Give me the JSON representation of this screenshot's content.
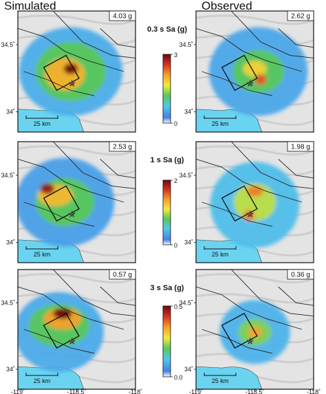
{
  "chart_data": {
    "type": "heatmap",
    "columns": [
      "Simulated",
      "Observed"
    ],
    "x_ticks": [
      "-119˚",
      "-118.5˚",
      "-118˚"
    ],
    "y_ticks": [
      "34.5˚",
      "34˚"
    ],
    "xlim": [
      -119,
      -118
    ],
    "ylim": [
      33.85,
      34.75
    ],
    "scale_bar": "25 km",
    "epicenter": {
      "lon": -118.54,
      "lat": 34.21
    },
    "rows": [
      {
        "label": "0.3 s Sa (g)",
        "colorbar_min": "0",
        "colorbar_max": "3",
        "vmax": 3,
        "simulated_peak": "4.03 g",
        "observed_peak": "2.62 g",
        "sim_blobs": [
          {
            "lon": -118.55,
            "lat": 34.32,
            "v": 3.0,
            "rx": 0.06,
            "ry": 0.04
          },
          {
            "lon": -118.6,
            "lat": 34.28,
            "v": 2.0,
            "rx": 0.17,
            "ry": 0.12
          },
          {
            "lon": -118.55,
            "lat": 34.3,
            "v": 1.2,
            "rx": 0.3,
            "ry": 0.22
          },
          {
            "lon": -118.55,
            "lat": 34.3,
            "v": 0.55,
            "rx": 0.44,
            "ry": 0.33
          }
        ],
        "obs_blobs": [
          {
            "lon": -118.45,
            "lat": 34.24,
            "v": 2.4,
            "rx": 0.05,
            "ry": 0.04
          },
          {
            "lon": -118.5,
            "lat": 34.32,
            "v": 1.8,
            "rx": 0.1,
            "ry": 0.06
          },
          {
            "lon": -118.47,
            "lat": 34.3,
            "v": 1.2,
            "rx": 0.22,
            "ry": 0.16
          },
          {
            "lon": -118.47,
            "lat": 34.3,
            "v": 0.5,
            "rx": 0.42,
            "ry": 0.33
          }
        ]
      },
      {
        "label": "1 s Sa (g)",
        "colorbar_min": "0",
        "colorbar_max": "2",
        "vmax": 2,
        "simulated_peak": "2.53 g",
        "observed_peak": "1.98 g",
        "sim_blobs": [
          {
            "lon": -118.75,
            "lat": 34.4,
            "v": 1.9,
            "rx": 0.06,
            "ry": 0.04
          },
          {
            "lon": -118.68,
            "lat": 34.35,
            "v": 1.3,
            "rx": 0.15,
            "ry": 0.08
          },
          {
            "lon": -118.6,
            "lat": 34.3,
            "v": 0.8,
            "rx": 0.25,
            "ry": 0.18
          },
          {
            "lon": -118.6,
            "lat": 34.3,
            "v": 0.3,
            "rx": 0.42,
            "ry": 0.33
          }
        ],
        "obs_blobs": [
          {
            "lon": -118.5,
            "lat": 34.38,
            "v": 1.5,
            "rx": 0.07,
            "ry": 0.04
          },
          {
            "lon": -118.55,
            "lat": 34.2,
            "v": 1.5,
            "rx": 0.05,
            "ry": 0.04
          },
          {
            "lon": -118.5,
            "lat": 34.3,
            "v": 1.0,
            "rx": 0.18,
            "ry": 0.14
          },
          {
            "lon": -118.5,
            "lat": 34.28,
            "v": 0.45,
            "rx": 0.38,
            "ry": 0.32
          }
        ]
      },
      {
        "label": "3 s Sa (g)",
        "colorbar_min": "0.0",
        "colorbar_max": "0.5",
        "vmax": 0.5,
        "simulated_peak": "0.57 g",
        "observed_peak": "0.36 g",
        "sim_blobs": [
          {
            "lon": -118.62,
            "lat": 34.42,
            "v": 0.5,
            "rx": 0.08,
            "ry": 0.04
          },
          {
            "lon": -118.62,
            "lat": 34.38,
            "v": 0.35,
            "rx": 0.16,
            "ry": 0.08
          },
          {
            "lon": -118.65,
            "lat": 34.33,
            "v": 0.2,
            "rx": 0.26,
            "ry": 0.16
          },
          {
            "lon": -118.65,
            "lat": 34.28,
            "v": 0.09,
            "rx": 0.38,
            "ry": 0.3
          }
        ],
        "obs_blobs": [
          {
            "lon": -118.5,
            "lat": 34.28,
            "v": 0.35,
            "rx": 0.06,
            "ry": 0.04
          },
          {
            "lon": -118.5,
            "lat": 34.28,
            "v": 0.22,
            "rx": 0.14,
            "ry": 0.1
          },
          {
            "lon": -118.5,
            "lat": 34.28,
            "v": 0.1,
            "rx": 0.3,
            "ry": 0.24
          }
        ]
      }
    ]
  }
}
